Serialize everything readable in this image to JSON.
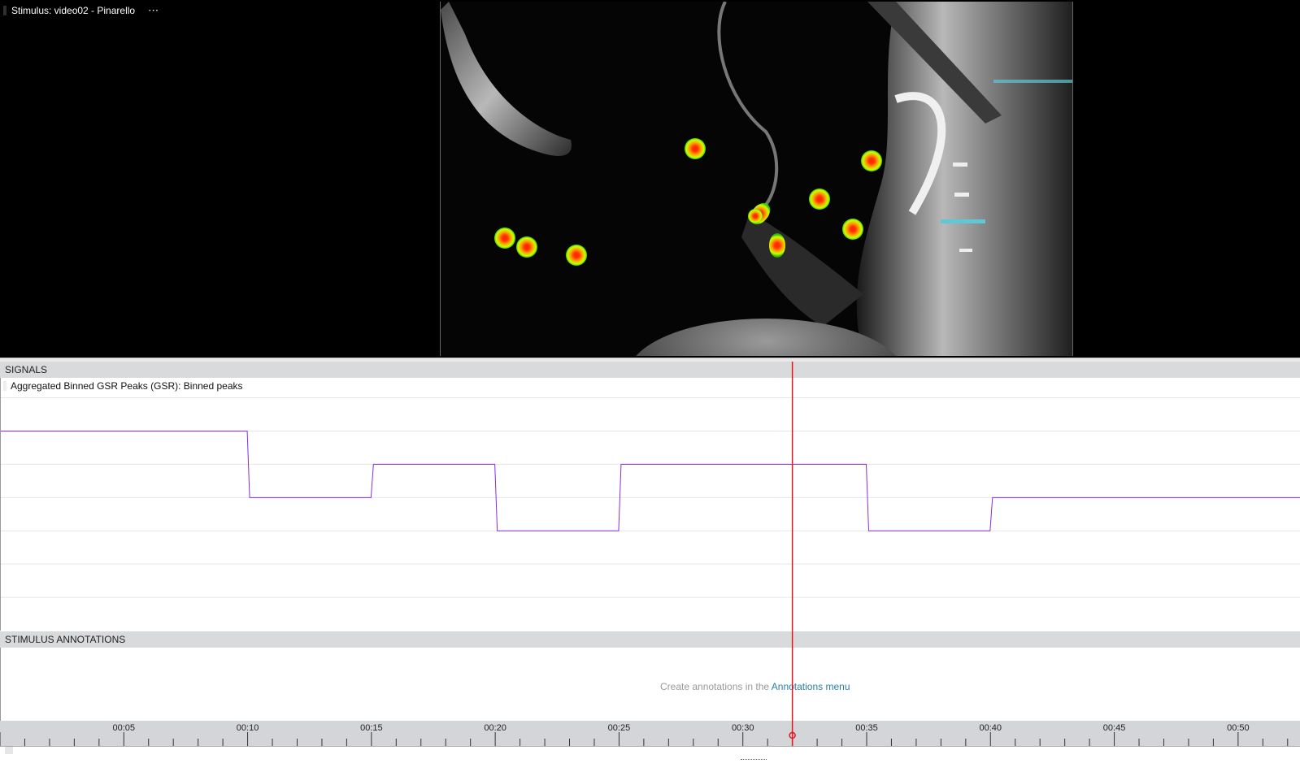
{
  "stimulus": {
    "title": "Stimulus: video02 - Pinarello",
    "more_label": "⋯"
  },
  "gaze_points": 10,
  "signals": {
    "header": "SIGNALS",
    "signal_title": "Aggregated Binned GSR Peaks (GSR): Binned peaks",
    "line_color": "#8a2be2"
  },
  "chart_data": {
    "type": "line",
    "step": true,
    "x": [
      0,
      10,
      15,
      20,
      25,
      35,
      40,
      52.5
    ],
    "y": [
      6,
      4,
      5,
      3,
      5,
      3,
      4,
      4
    ],
    "xlim": [
      0,
      52.5
    ],
    "ylim": [
      0,
      7.6
    ],
    "grid": true
  },
  "annotations": {
    "header": "STIMULUS ANNOTATIONS",
    "hint_prefix": "Create annotations in the ",
    "hint_link": "Annotations menu"
  },
  "timeline": {
    "labels": [
      "00:05",
      "00:10",
      "00:15",
      "00:20",
      "00:25",
      "00:30",
      "00:35",
      "00:40",
      "00:45",
      "00:50"
    ],
    "label_seconds": [
      5,
      10,
      15,
      20,
      25,
      30,
      35,
      40,
      45,
      50
    ],
    "playhead_seconds": 32,
    "playhead_color": "#e8141c"
  }
}
